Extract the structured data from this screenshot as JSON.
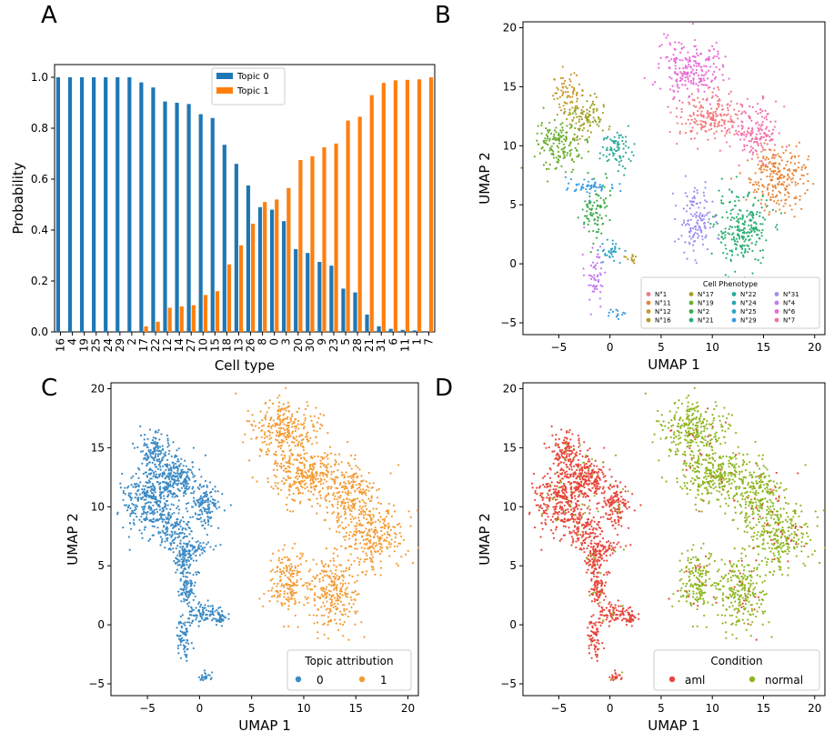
{
  "panel_letters": [
    "A",
    "B",
    "C",
    "D"
  ],
  "colors": {
    "topic0": "#1f77b4",
    "topic1": "#ff7f0e",
    "aml": "#e8463c",
    "normal": "#8db61e",
    "umap_topic0": "#3b8ac4",
    "umap_topic1": "#f39b33"
  },
  "chart_data": [
    {
      "panel": "A",
      "type": "bar",
      "xlabel": "Cell type",
      "ylabel": "Probability",
      "ylim": [
        0,
        1.05
      ],
      "yticks": [
        "0.0",
        "0.2",
        "0.4",
        "0.6",
        "0.8",
        "1.0"
      ],
      "legend_position": "top-center",
      "categories": [
        "16",
        "4",
        "19",
        "25",
        "24",
        "29",
        "2",
        "17",
        "22",
        "12",
        "14",
        "27",
        "10",
        "15",
        "18",
        "13",
        "26",
        "8",
        "0",
        "3",
        "20",
        "30",
        "9",
        "23",
        "5",
        "28",
        "21",
        "31",
        "6",
        "11",
        "1",
        "7"
      ],
      "series": [
        {
          "name": "Topic 0",
          "color": "#1f77b4",
          "values": [
            1.0,
            1.0,
            1.0,
            1.0,
            1.0,
            1.0,
            1.0,
            0.98,
            0.96,
            0.905,
            0.9,
            0.895,
            0.855,
            0.84,
            0.735,
            0.66,
            0.575,
            0.49,
            0.48,
            0.435,
            0.325,
            0.31,
            0.275,
            0.26,
            0.17,
            0.155,
            0.068,
            0.022,
            0.012,
            0.008,
            0.006,
            0.0
          ]
        },
        {
          "name": "Topic 1",
          "color": "#ff7f0e",
          "values": [
            0.0,
            0.0,
            0.0,
            0.0,
            0.0,
            0.0,
            0.0,
            0.022,
            0.04,
            0.095,
            0.1,
            0.105,
            0.145,
            0.16,
            0.265,
            0.34,
            0.425,
            0.51,
            0.52,
            0.565,
            0.675,
            0.69,
            0.725,
            0.74,
            0.83,
            0.845,
            0.93,
            0.978,
            0.988,
            0.99,
            0.992,
            1.0
          ]
        }
      ]
    },
    {
      "panel": "B",
      "type": "scatter",
      "xlabel": "UMAP 1",
      "ylabel": "UMAP 2",
      "xlim": [
        -8.5,
        21
      ],
      "ylim": [
        -6,
        20.5
      ],
      "xticks": [
        "−5",
        "0",
        "5",
        "10",
        "15",
        "20"
      ],
      "yticks": [
        "−5",
        "0",
        "5",
        "10",
        "15",
        "20"
      ],
      "legend_title": "Cell Phenotype",
      "legend_position": "lower-right",
      "legend_columns": [
        [
          {
            "name": "N°1",
            "color": "#f47a7f"
          },
          {
            "name": "N°11",
            "color": "#e8863a"
          },
          {
            "name": "N°12",
            "color": "#c89a2a"
          },
          {
            "name": "N°16",
            "color": "#b59a22"
          }
        ],
        [
          {
            "name": "N°17",
            "color": "#a0a02a"
          },
          {
            "name": "N°19",
            "color": "#6aae2e"
          },
          {
            "name": "N°2",
            "color": "#3aab4a"
          },
          {
            "name": "N°21",
            "color": "#2aae70"
          }
        ],
        [
          {
            "name": "N°22",
            "color": "#2aab98"
          },
          {
            "name": "N°24",
            "color": "#29a8ac"
          },
          {
            "name": "N°25",
            "color": "#2aa6c6"
          },
          {
            "name": "N°29",
            "color": "#3a9ce0"
          }
        ],
        [
          {
            "name": "N°31",
            "color": "#9a8ef0"
          },
          {
            "name": "N°4",
            "color": "#c479ee"
          },
          {
            "name": "N°6",
            "color": "#e96ad6"
          },
          {
            "name": "N°7",
            "color": "#f471aa"
          }
        ]
      ],
      "clusters": [
        {
          "cx": -4.2,
          "cy": 14.4,
          "rx": 1.5,
          "ry": 1.4,
          "color": "#c89a2a"
        },
        {
          "cx": -5.0,
          "cy": 10.0,
          "rx": 2.2,
          "ry": 2.0,
          "color": "#6aae2e"
        },
        {
          "cx": -2.2,
          "cy": 12.3,
          "rx": 1.8,
          "ry": 1.6,
          "color": "#a0a02a"
        },
        {
          "cx": 0.6,
          "cy": 9.8,
          "rx": 1.4,
          "ry": 1.5,
          "color": "#2aab98"
        },
        {
          "cx": -1.5,
          "cy": 4.5,
          "rx": 1.1,
          "ry": 2.2,
          "color": "#3aab4a"
        },
        {
          "cx": -2.0,
          "cy": 6.5,
          "rx": 2.2,
          "ry": 0.7,
          "color": "#3a9ce0"
        },
        {
          "cx": 0.2,
          "cy": 1.0,
          "rx": 1.2,
          "ry": 0.8,
          "color": "#2aa6c6"
        },
        {
          "cx": 1.9,
          "cy": 0.6,
          "rx": 0.7,
          "ry": 0.5,
          "color": "#b59a22"
        },
        {
          "cx": -1.5,
          "cy": -0.8,
          "rx": 0.8,
          "ry": 2.0,
          "color": "#c479ee"
        },
        {
          "cx": 0.6,
          "cy": -4.3,
          "rx": 0.8,
          "ry": 0.5,
          "color": "#3a9ce0"
        },
        {
          "cx": 8.0,
          "cy": 16.5,
          "rx": 2.8,
          "ry": 2.2,
          "color": "#e96ad6"
        },
        {
          "cx": 9.8,
          "cy": 12.4,
          "rx": 3.0,
          "ry": 1.9,
          "color": "#f47a7f"
        },
        {
          "cx": 14.2,
          "cy": 11.2,
          "rx": 2.2,
          "ry": 2.0,
          "color": "#f471aa"
        },
        {
          "cx": 16.5,
          "cy": 7.4,
          "rx": 2.6,
          "ry": 2.6,
          "color": "#e8863a"
        },
        {
          "cx": 8.4,
          "cy": 3.7,
          "rx": 1.5,
          "ry": 2.5,
          "color": "#9a8ef0"
        },
        {
          "cx": 12.9,
          "cy": 2.8,
          "rx": 2.4,
          "ry": 2.8,
          "color": "#2aae70"
        }
      ]
    },
    {
      "panel": "C",
      "type": "scatter",
      "xlabel": "UMAP 1",
      "ylabel": "UMAP 2",
      "xlim": [
        -8.5,
        21
      ],
      "ylim": [
        -6,
        20.5
      ],
      "xticks": [
        "−5",
        "0",
        "5",
        "10",
        "15",
        "20"
      ],
      "yticks": [
        "−5",
        "0",
        "5",
        "10",
        "15",
        "20"
      ],
      "legend_title": "Topic attribution",
      "legend_position": "lower-right",
      "series": [
        {
          "name": "0",
          "color": "#3b8ac4"
        },
        {
          "name": "1",
          "color": "#f39b33"
        }
      ]
    },
    {
      "panel": "D",
      "type": "scatter",
      "xlabel": "UMAP 1",
      "ylabel": "UMAP 2",
      "xlim": [
        -8.5,
        21
      ],
      "ylim": [
        -6,
        20.5
      ],
      "xticks": [
        "−5",
        "0",
        "5",
        "10",
        "15",
        "20"
      ],
      "yticks": [
        "−5",
        "0",
        "5",
        "10",
        "15",
        "20"
      ],
      "legend_title": "Condition",
      "legend_position": "lower-right",
      "series": [
        {
          "name": "aml",
          "color": "#e8463c"
        },
        {
          "name": "normal",
          "color": "#8db61e"
        }
      ]
    }
  ]
}
